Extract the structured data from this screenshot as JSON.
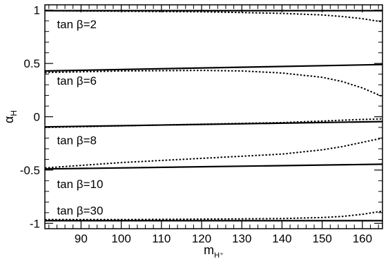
{
  "chart_data": {
    "type": "line",
    "xlabel": "m",
    "xlabel_sub": "H⁺",
    "ylabel": "α",
    "ylabel_sub": "H",
    "xlim": [
      81,
      165
    ],
    "ylim": [
      -1.05,
      1.05
    ],
    "x_ticks": [
      90,
      100,
      110,
      120,
      130,
      140,
      150,
      160
    ],
    "x_tick_labels": [
      "90",
      "100",
      "110",
      "120",
      "130",
      "140",
      "150",
      "160"
    ],
    "y_ticks": [
      1,
      0.5,
      0,
      -0.5,
      -1
    ],
    "y_tick_labels": [
      "1",
      "0.5",
      "0",
      "-0.5",
      "-1"
    ],
    "grid": false,
    "series": [
      {
        "name": "tan β=2",
        "label_at": [
          84,
          0.87
        ],
        "solid": {
          "x": [
            81,
            165
          ],
          "y": [
            0.995,
            0.995
          ]
        },
        "dotted": {
          "x": [
            81,
            100,
            120,
            140,
            150,
            155,
            160,
            165
          ],
          "y": [
            0.995,
            0.99,
            0.985,
            0.97,
            0.955,
            0.94,
            0.92,
            0.89
          ]
        }
      },
      {
        "name": "tan β=6",
        "label_at": [
          84,
          0.34
        ],
        "solid": {
          "x": [
            81,
            165
          ],
          "y": [
            0.43,
            0.49
          ]
        },
        "dotted": {
          "x": [
            81,
            100,
            120,
            130,
            140,
            150,
            155,
            160,
            165
          ],
          "y": [
            0.415,
            0.43,
            0.435,
            0.43,
            0.41,
            0.37,
            0.33,
            0.27,
            0.19
          ]
        }
      },
      {
        "name": "tan β=8",
        "label_at": [
          84,
          -0.22
        ],
        "solid": {
          "x": [
            81,
            165
          ],
          "y": [
            -0.095,
            -0.045
          ]
        },
        "dotted": {
          "x": [
            81,
            100,
            120,
            140,
            150,
            160,
            165
          ],
          "y": [
            -0.1,
            -0.085,
            -0.07,
            -0.055,
            -0.04,
            -0.025,
            -0.02
          ]
        }
      },
      {
        "name": "tan β=10",
        "label_at": [
          84,
          -0.63
        ],
        "solid": {
          "x": [
            81,
            165
          ],
          "y": [
            -0.49,
            -0.445
          ]
        },
        "dotted": {
          "x": [
            81,
            100,
            120,
            140,
            150,
            155,
            160,
            165
          ],
          "y": [
            -0.48,
            -0.43,
            -0.39,
            -0.35,
            -0.31,
            -0.28,
            -0.24,
            -0.2
          ]
        }
      },
      {
        "name": "tan β=30",
        "label_at": [
          84,
          -0.88
        ],
        "solid": {
          "x": [
            81,
            165
          ],
          "y": [
            -0.975,
            -0.975
          ]
        },
        "dotted": {
          "x": [
            81,
            100,
            120,
            140,
            150,
            155,
            160,
            165
          ],
          "y": [
            -0.965,
            -0.965,
            -0.96,
            -0.955,
            -0.945,
            -0.935,
            -0.915,
            -0.885
          ]
        }
      }
    ]
  }
}
